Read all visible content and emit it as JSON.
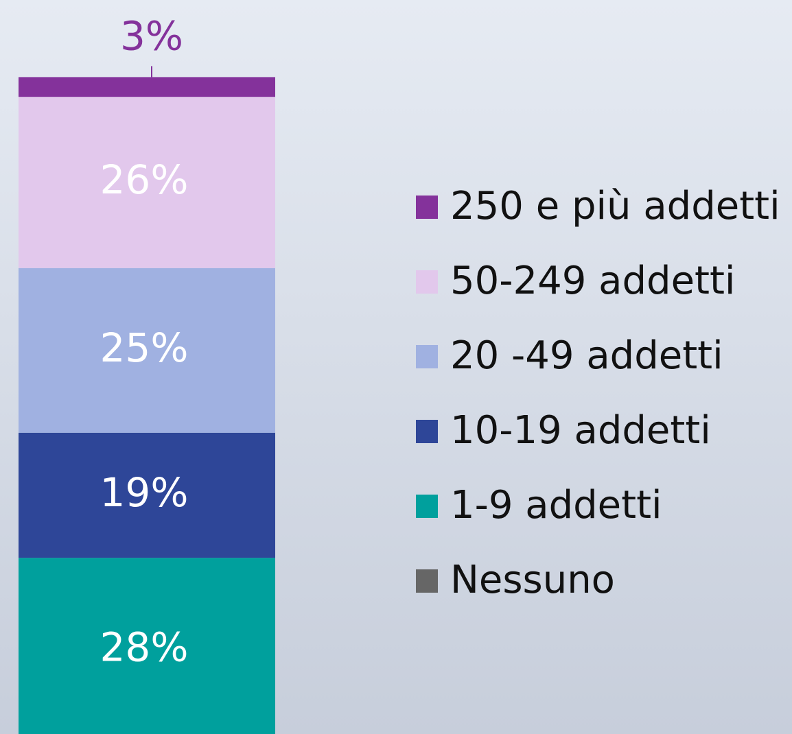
{
  "chart_data": {
    "type": "bar",
    "stacked": true,
    "categories": [
      null
    ],
    "series": [
      {
        "name": "250 e più addetti",
        "color": "#84329b",
        "values": [
          3
        ],
        "value_labels": [
          "3%"
        ]
      },
      {
        "name": "50-249 addetti",
        "color": "#e2c8ec",
        "values": [
          26
        ],
        "value_labels": [
          "26%"
        ]
      },
      {
        "name": "20 -49 addetti",
        "color": "#a0b1e1",
        "values": [
          25
        ],
        "value_labels": [
          "25%"
        ]
      },
      {
        "name": "10-19 addetti",
        "color": "#2e4698",
        "values": [
          19
        ],
        "value_labels": [
          "19%"
        ]
      },
      {
        "name": "1-9 addetti",
        "color": "#00a09d",
        "values": [
          28
        ],
        "value_labels": [
          "28%"
        ]
      },
      {
        "name": "Nessuno",
        "color": "#666666",
        "values": [
          null
        ]
      }
    ],
    "legend": "right"
  }
}
